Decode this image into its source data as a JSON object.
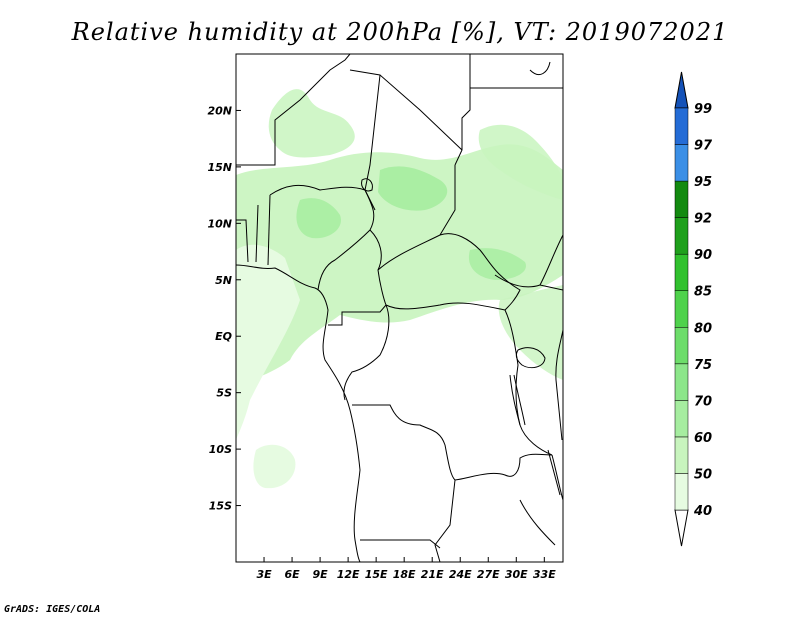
{
  "title": "Relative humidity at 200hPa [%], VT: 2019072021",
  "credit": "GrADS: IGES/COLA",
  "map": {
    "lon_range": [
      0,
      35
    ],
    "lat_range": [
      -20,
      25
    ],
    "x_ticks": [
      {
        "lon": 3,
        "label": "3E"
      },
      {
        "lon": 6,
        "label": "6E"
      },
      {
        "lon": 9,
        "label": "9E"
      },
      {
        "lon": 12,
        "label": "12E"
      },
      {
        "lon": 15,
        "label": "15E"
      },
      {
        "lon": 18,
        "label": "18E"
      },
      {
        "lon": 21,
        "label": "21E"
      },
      {
        "lon": 24,
        "label": "24E"
      },
      {
        "lon": 27,
        "label": "27E"
      },
      {
        "lon": 30,
        "label": "30E"
      },
      {
        "lon": 33,
        "label": "33E"
      }
    ],
    "y_ticks": [
      {
        "lat": 20,
        "label": "20N"
      },
      {
        "lat": 15,
        "label": "15N"
      },
      {
        "lat": 10,
        "label": "10N"
      },
      {
        "lat": 5,
        "label": "5N"
      },
      {
        "lat": 0,
        "label": "EQ"
      },
      {
        "lat": -5,
        "label": "5S"
      },
      {
        "lat": -10,
        "label": "10S"
      },
      {
        "lat": -15,
        "label": "15S"
      }
    ]
  },
  "colorbar": {
    "levels": [
      "40",
      "50",
      "60",
      "70",
      "75",
      "80",
      "85",
      "90",
      "92",
      "95",
      "97",
      "99"
    ],
    "colors": [
      "#ffffff",
      "#e6fbe1",
      "#c8f4be",
      "#a6eda0",
      "#8ce68a",
      "#6ddd6a",
      "#4fd24c",
      "#31c12e",
      "#1fa01c",
      "#138a10",
      "#3b8fe6",
      "#246cd6",
      "#1452b8"
    ]
  },
  "colors": {
    "frame": "#000000",
    "land_line": "#000000"
  }
}
